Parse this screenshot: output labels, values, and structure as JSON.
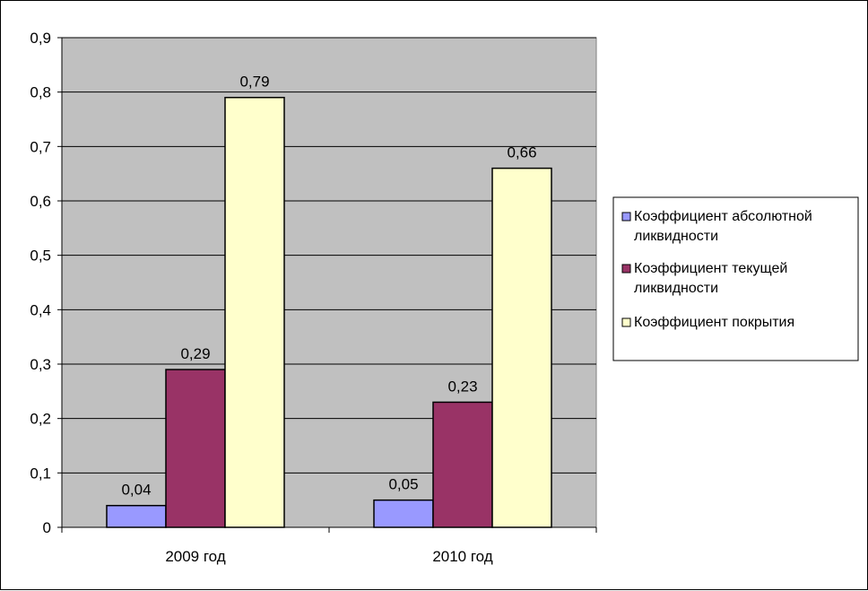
{
  "chart_data": {
    "type": "bar",
    "categories": [
      "2009 год",
      "2010 год"
    ],
    "series": [
      {
        "name": "Коэффициент абсолютной ликвидности",
        "legend_lines": [
          "Коэффициент абсолютной",
          "ликвидности"
        ],
        "values": [
          0.04,
          0.05
        ],
        "labels": [
          "0,04",
          "0,05"
        ],
        "color": "#9999FF"
      },
      {
        "name": "Коэффициент текущей ликвидности",
        "legend_lines": [
          "Коэффициент текущей",
          "ликвидности"
        ],
        "values": [
          0.29,
          0.23
        ],
        "labels": [
          "0,29",
          "0,23"
        ],
        "color": "#993366"
      },
      {
        "name": "Коэффициент покрытия",
        "legend_lines": [
          "Коэффициент покрытия"
        ],
        "values": [
          0.79,
          0.66
        ],
        "labels": [
          "0,79",
          "0,66"
        ],
        "color": "#FFFFCC"
      }
    ],
    "ylim": [
      0,
      0.9
    ],
    "yticks": [
      0,
      0.1,
      0.2,
      0.3,
      0.4,
      0.5,
      0.6,
      0.7,
      0.8,
      0.9
    ],
    "ytick_labels": [
      "0",
      "0,1",
      "0,2",
      "0,3",
      "0,4",
      "0,5",
      "0,6",
      "0,7",
      "0,8",
      "0,9"
    ],
    "grid": true,
    "plot_background": "#C0C0C0",
    "legend_position": "right",
    "title": "",
    "xlabel": "",
    "ylabel": ""
  }
}
